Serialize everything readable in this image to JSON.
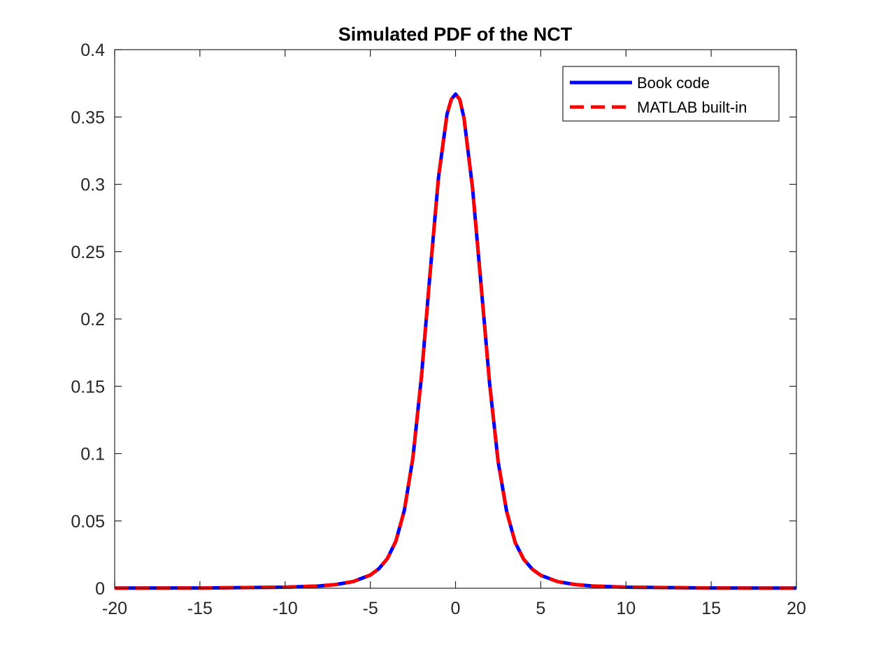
{
  "chart_data": {
    "type": "line",
    "title": "Simulated PDF of the NCT",
    "xlabel": "",
    "ylabel": "",
    "xlim": [
      -20,
      20
    ],
    "ylim": [
      0,
      0.4
    ],
    "xticks": [
      -20,
      -15,
      -10,
      -5,
      0,
      5,
      10,
      15,
      20
    ],
    "xtick_labels": [
      "-20",
      "-15",
      "-10",
      "-5",
      "0",
      "5",
      "10",
      "15",
      "20"
    ],
    "yticks": [
      0,
      0.05,
      0.1,
      0.15,
      0.2,
      0.25,
      0.3,
      0.35,
      0.4
    ],
    "ytick_labels": [
      "0",
      "0.05",
      "0.1",
      "0.15",
      "0.2",
      "0.25",
      "0.3",
      "0.35",
      "0.4"
    ],
    "grid": false,
    "legend_position": "top-right",
    "x": [
      -20,
      -15,
      -10,
      -8,
      -7,
      -6,
      -5,
      -4.5,
      -4,
      -3.5,
      -3,
      -2.5,
      -2,
      -1.5,
      -1,
      -0.5,
      -0.25,
      0,
      0.25,
      0.5,
      1,
      1.5,
      2,
      2.5,
      3,
      3.5,
      4,
      4.5,
      5,
      6,
      7,
      8,
      10,
      15,
      20
    ],
    "series": [
      {
        "name": "Book code",
        "color": "#0000ff",
        "style": "solid",
        "values": [
          0.0001,
          0.0002,
          0.0008,
          0.0017,
          0.0028,
          0.005,
          0.0098,
          0.0145,
          0.022,
          0.035,
          0.058,
          0.097,
          0.157,
          0.233,
          0.305,
          0.352,
          0.363,
          0.367,
          0.363,
          0.349,
          0.297,
          0.225,
          0.152,
          0.094,
          0.057,
          0.034,
          0.0215,
          0.0142,
          0.0096,
          0.0049,
          0.0028,
          0.0017,
          0.0008,
          0.0002,
          0.0001
        ]
      },
      {
        "name": "MATLAB built-in",
        "color": "#ff0000",
        "style": "dashed",
        "values": [
          0.0001,
          0.0002,
          0.0008,
          0.0017,
          0.0028,
          0.005,
          0.0098,
          0.0145,
          0.022,
          0.035,
          0.058,
          0.097,
          0.157,
          0.233,
          0.305,
          0.352,
          0.363,
          0.367,
          0.363,
          0.349,
          0.297,
          0.225,
          0.152,
          0.094,
          0.057,
          0.034,
          0.0215,
          0.0142,
          0.0096,
          0.0049,
          0.0028,
          0.0017,
          0.0008,
          0.0002,
          0.0001
        ]
      }
    ]
  }
}
